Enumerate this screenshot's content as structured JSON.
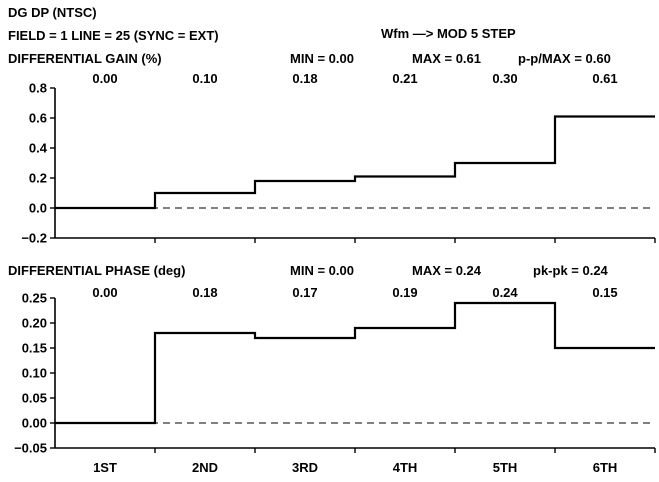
{
  "header": {
    "title": "DG DP (NTSC)",
    "field_line": "FIELD = 1 LINE = 25 (SYNC = EXT)",
    "waveform": "Wfm —> MOD 5 STEP"
  },
  "chart_data": [
    {
      "type": "line",
      "title": "DIFFERENTIAL GAIN (%)",
      "min_label": "MIN = 0.00",
      "max_label": "MAX = 0.61",
      "ratio_label": "p-p/MAX = 0.60",
      "categories": [
        "1ST",
        "2ND",
        "3RD",
        "4TH",
        "5TH",
        "6TH"
      ],
      "values": [
        0.0,
        0.1,
        0.18,
        0.21,
        0.3,
        0.61
      ],
      "value_labels": [
        "0.00",
        "0.10",
        "0.18",
        "0.21",
        "0.30",
        "0.61"
      ],
      "ylim": [
        -0.2,
        0.8
      ],
      "yticks": [
        "0.8",
        "0.6",
        "0.4",
        "0.2",
        "0.0",
        "−0.2"
      ],
      "ytick_values": [
        0.8,
        0.6,
        0.4,
        0.2,
        0.0,
        -0.2
      ],
      "reference_line": 0.0
    },
    {
      "type": "line",
      "title": "DIFFERENTIAL PHASE (deg)",
      "min_label": "MIN = 0.00",
      "max_label": "MAX = 0.24",
      "ratio_label": "pk-pk = 0.24",
      "categories": [
        "1ST",
        "2ND",
        "3RD",
        "4TH",
        "5TH",
        "6TH"
      ],
      "values": [
        0.0,
        0.18,
        0.17,
        0.19,
        0.24,
        0.15
      ],
      "value_labels": [
        "0.00",
        "0.18",
        "0.17",
        "0.19",
        "0.24",
        "0.15"
      ],
      "ylim": [
        -0.05,
        0.25
      ],
      "yticks": [
        "0.25",
        "0.20",
        "0.15",
        "0.10",
        "0.05",
        "0.00",
        "−0.05"
      ],
      "ytick_values": [
        0.25,
        0.2,
        0.15,
        0.1,
        0.05,
        0.0,
        -0.05
      ],
      "reference_line": 0.0
    }
  ],
  "x_labels": [
    "1ST",
    "2ND",
    "3RD",
    "4TH",
    "5TH",
    "6TH"
  ]
}
